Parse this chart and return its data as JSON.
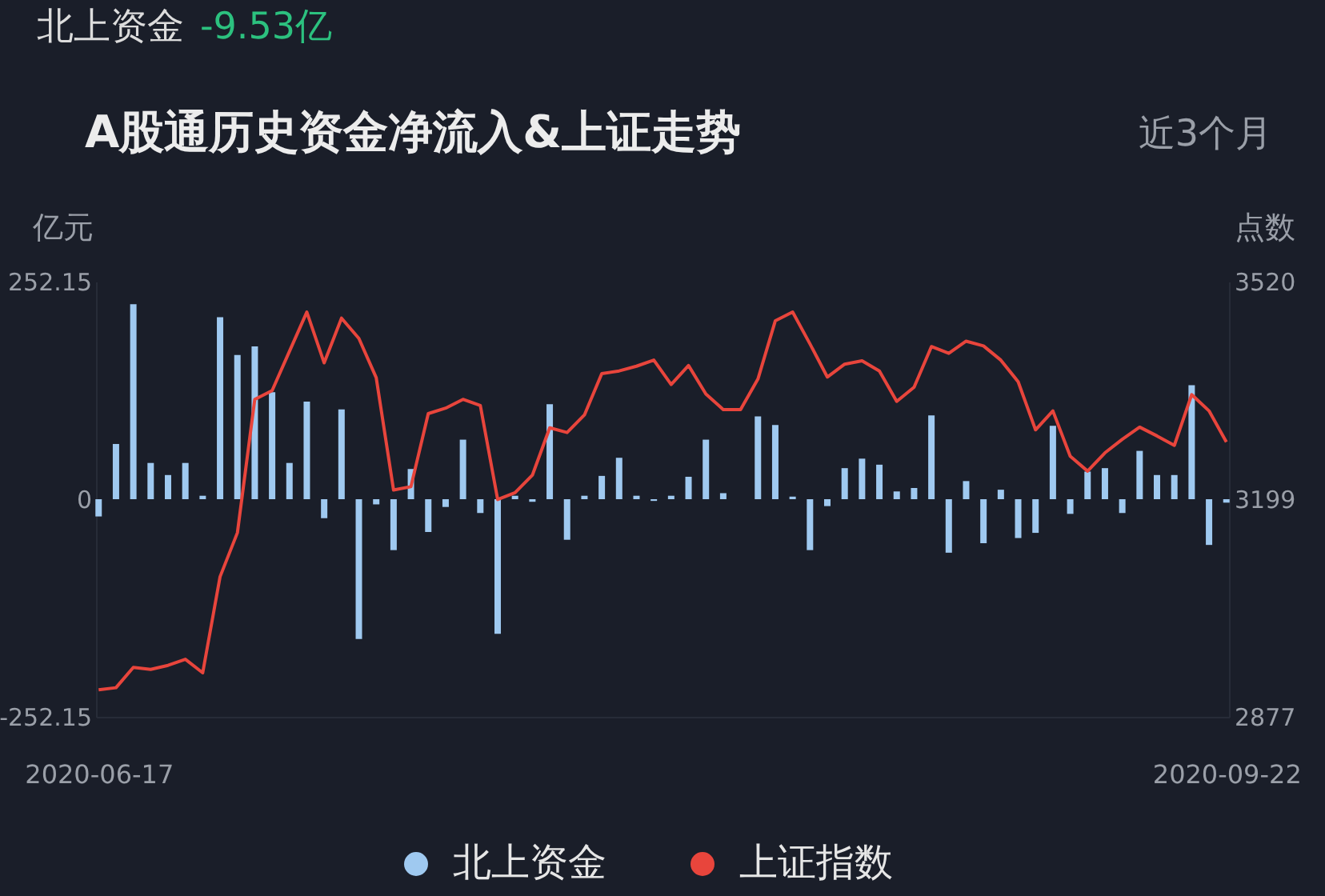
{
  "chart_data": {
    "type": "bar",
    "title": "A股通历史资金净流入&上证走势",
    "annotations": [
      "北上资金",
      "-9.53亿",
      "近3个月"
    ],
    "ylabel": "亿元",
    "y2label": "点数",
    "categories": [
      "2020-06-17",
      null,
      null,
      null,
      null,
      null,
      null,
      null,
      null,
      null,
      null,
      null,
      null,
      null,
      null,
      null,
      null,
      null,
      null,
      null,
      null,
      null,
      null,
      null,
      null,
      null,
      null,
      null,
      null,
      null,
      null,
      null,
      null,
      null,
      null,
      null,
      null,
      null,
      null,
      null,
      null,
      null,
      null,
      null,
      null,
      null,
      null,
      null,
      null,
      null,
      null,
      null,
      null,
      null,
      null,
      null,
      null,
      null,
      null,
      null,
      null,
      null,
      null,
      null,
      null,
      "2020-09-22"
    ],
    "series": [
      {
        "name": "北上资金",
        "color": "#9fc9f0",
        "values": [
          -20,
          64,
          226,
          42,
          28,
          42,
          4,
          211,
          167,
          177,
          124,
          42,
          113,
          -22,
          104,
          -162,
          -6,
          -59,
          35,
          -38,
          -9,
          69,
          -16,
          -156,
          4,
          -3,
          110,
          -47,
          4,
          27,
          48,
          4,
          -2,
          4,
          26,
          69,
          7,
          0,
          96,
          86,
          3,
          -59,
          -8,
          36,
          47,
          40,
          9,
          13,
          97,
          -62,
          21,
          -51,
          11,
          -45,
          -39,
          85,
          -17,
          32,
          36,
          -16,
          56,
          28,
          28,
          132,
          -53,
          -4
        ]
      },
      {
        "name": "上证指数",
        "type": "line",
        "axis": "y2",
        "color": "#e8453c",
        "values": [
          2917,
          2920,
          2950,
          2947,
          2953,
          2962,
          2942,
          3084,
          3149,
          3346,
          3359,
          3417,
          3475,
          3400,
          3466,
          3436,
          3378,
          3212,
          3217,
          3325,
          3333,
          3346,
          3337,
          3198,
          3208,
          3234,
          3304,
          3297,
          3323,
          3384,
          3388,
          3395,
          3404,
          3368,
          3396,
          3354,
          3331,
          3331,
          3376,
          3462,
          3475,
          3428,
          3379,
          3398,
          3403,
          3388,
          3343,
          3364,
          3424,
          3414,
          3432,
          3425,
          3404,
          3372,
          3301,
          3329,
          3262,
          3240,
          3267,
          3287,
          3305,
          3292,
          3278,
          3353,
          3329,
          3283
        ]
      }
    ],
    "ylim": [
      -252.15,
      252.15
    ],
    "yticks": [
      -252.15,
      0,
      252.15
    ],
    "y2lim": [
      2877,
      3520
    ],
    "y2ticks": [
      2877,
      3199,
      3520
    ],
    "legend": "bottom"
  }
}
